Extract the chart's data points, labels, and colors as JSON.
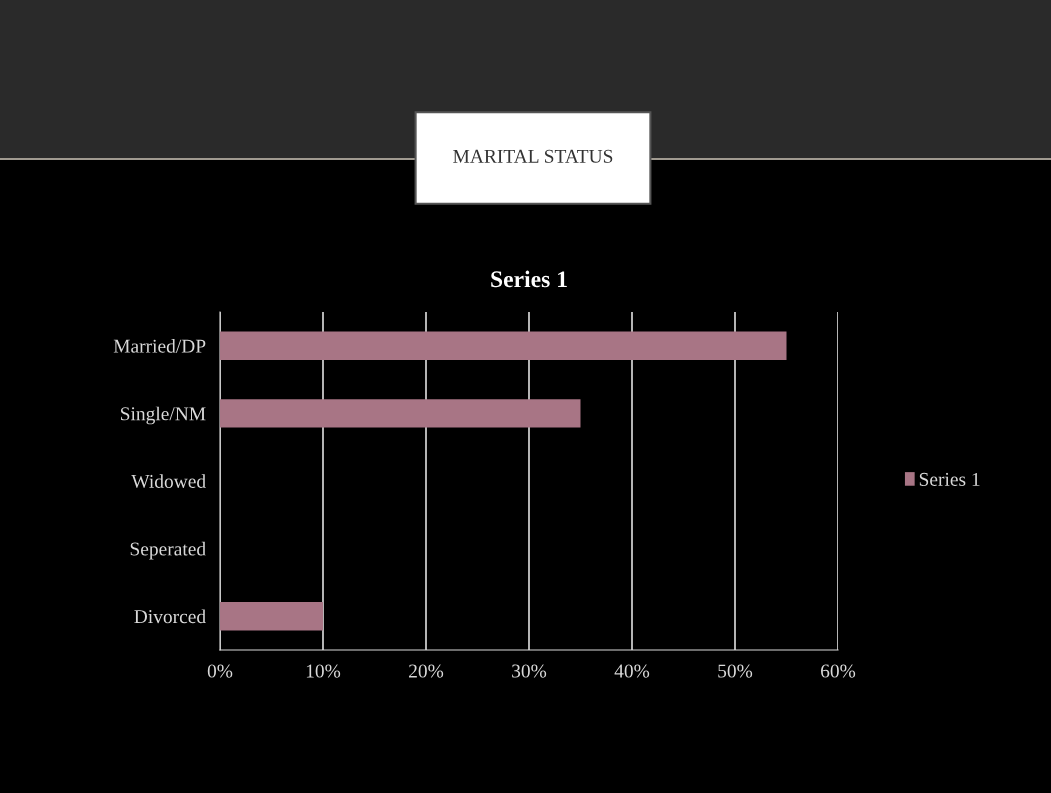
{
  "chart_data": {
    "type": "bar",
    "orientation": "horizontal",
    "title": "MARITAL STATUS",
    "subtitle": "Series 1",
    "categories": [
      "Married/DP",
      "Single/NM",
      "Widowed",
      "Seperated",
      "Divorced"
    ],
    "series": [
      {
        "name": "Series 1",
        "color": "#a87585",
        "values": [
          55,
          35,
          0,
          0,
          10
        ]
      }
    ],
    "xlim": [
      0,
      60
    ],
    "xticks": [
      {
        "value": 0,
        "label": "0%"
      },
      {
        "value": 10,
        "label": "10%"
      },
      {
        "value": 20,
        "label": "20%"
      },
      {
        "value": 30,
        "label": "30%"
      },
      {
        "value": 40,
        "label": "40%"
      },
      {
        "value": 50,
        "label": "50%"
      },
      {
        "value": 60,
        "label": "60%"
      }
    ],
    "grid": "x",
    "legend": "right"
  }
}
